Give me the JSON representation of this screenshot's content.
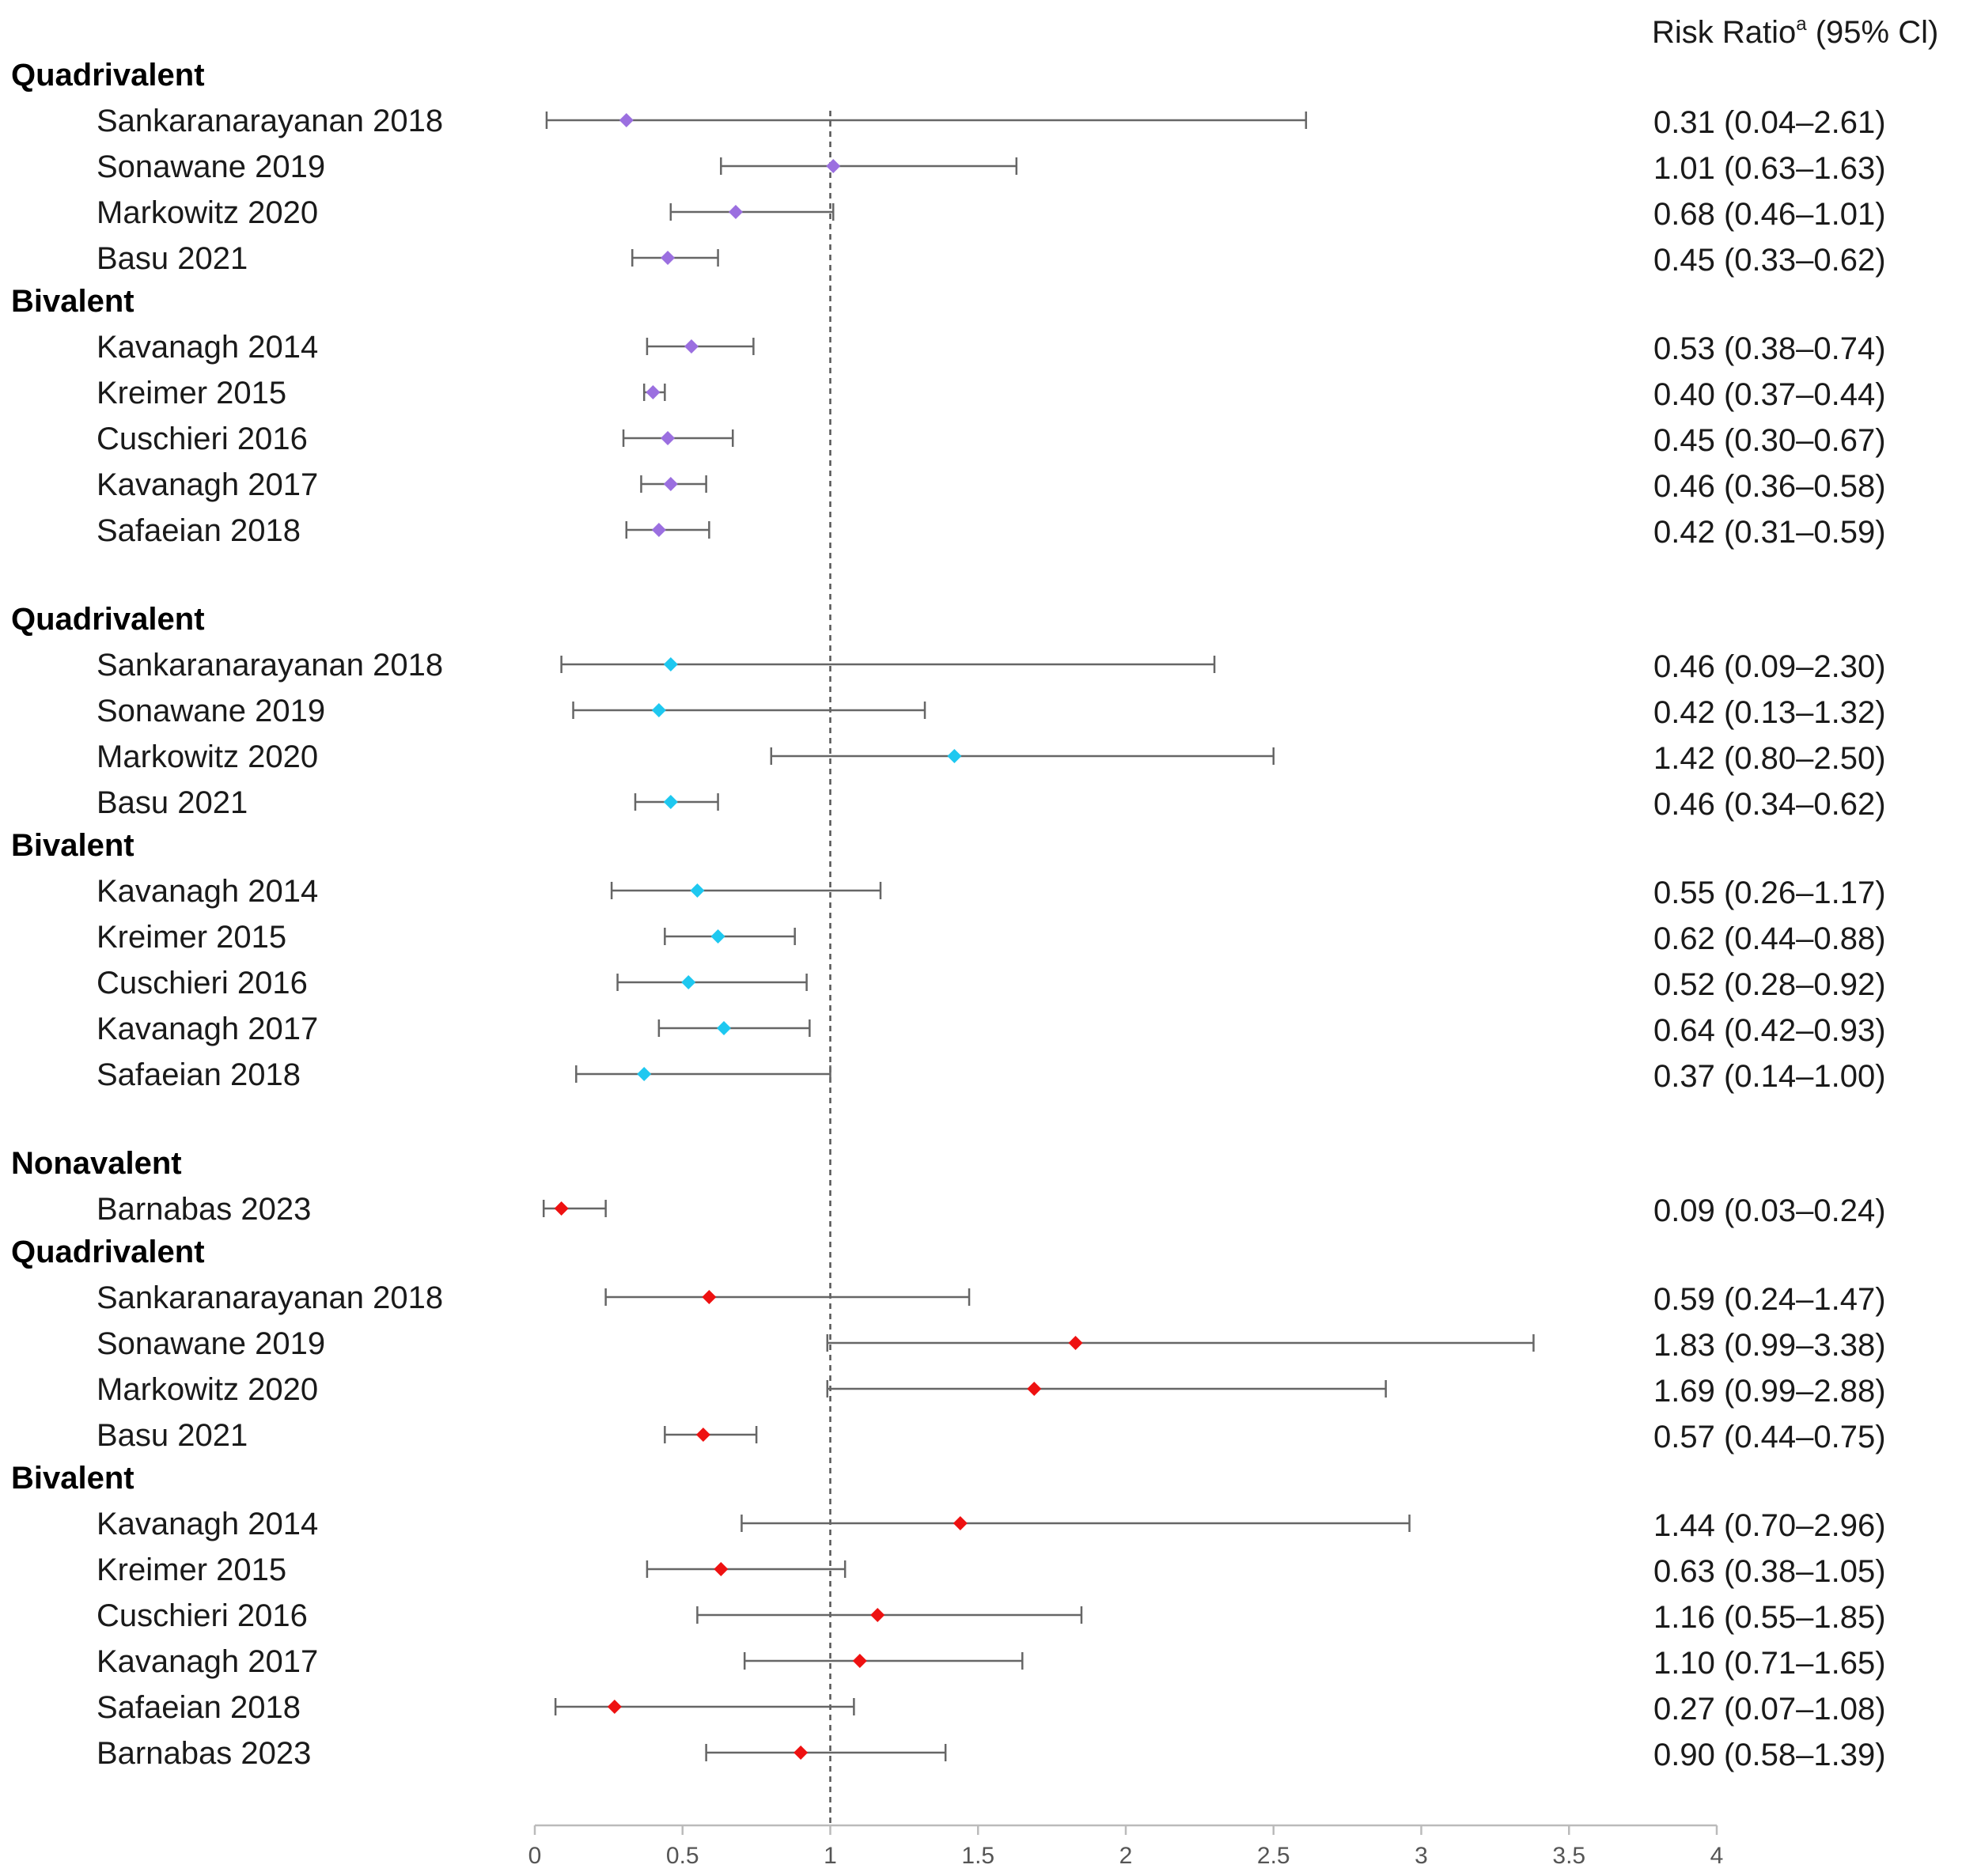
{
  "chart_data": {
    "type": "scatter",
    "subtype": "forest-plot",
    "title": "",
    "header": {
      "text": "Risk Ratio",
      "superscript": "a",
      "suffix": " (95% Cl)"
    },
    "reference_line": 1,
    "xlim": [
      0,
      4
    ],
    "xticks": [
      0,
      0.5,
      1,
      1.5,
      2,
      2.5,
      3,
      3.5,
      4
    ],
    "xtick_labels": [
      "0",
      "0.5",
      "1",
      "1.5",
      "2",
      "2.5",
      "3",
      "3.5",
      "4"
    ],
    "xlabel": "",
    "ylabel": "",
    "panels": [
      {
        "color": "#9b6fe0",
        "groups": [
          {
            "name": "Quadrivalent",
            "studies": [
              {
                "study": "Sankaranarayanan 2018",
                "rr": 0.31,
                "lo": 0.04,
                "hi": 2.61,
                "label": "0.31 (0.04–2.61)"
              },
              {
                "study": "Sonawane 2019",
                "rr": 1.01,
                "lo": 0.63,
                "hi": 1.63,
                "label": "1.01 (0.63–1.63)"
              },
              {
                "study": "Markowitz 2020",
                "rr": 0.68,
                "lo": 0.46,
                "hi": 1.01,
                "label": "0.68 (0.46–1.01)"
              },
              {
                "study": "Basu 2021",
                "rr": 0.45,
                "lo": 0.33,
                "hi": 0.62,
                "label": "0.45 (0.33–0.62)"
              }
            ]
          },
          {
            "name": "Bivalent",
            "studies": [
              {
                "study": "Kavanagh 2014",
                "rr": 0.53,
                "lo": 0.38,
                "hi": 0.74,
                "label": "0.53 (0.38–0.74)"
              },
              {
                "study": "Kreimer 2015",
                "rr": 0.4,
                "lo": 0.37,
                "hi": 0.44,
                "label": "0.40 (0.37–0.44)"
              },
              {
                "study": "Cuschieri 2016",
                "rr": 0.45,
                "lo": 0.3,
                "hi": 0.67,
                "label": "0.45 (0.30–0.67)"
              },
              {
                "study": "Kavanagh 2017",
                "rr": 0.46,
                "lo": 0.36,
                "hi": 0.58,
                "label": "0.46 (0.36–0.58)"
              },
              {
                "study": "Safaeian 2018",
                "rr": 0.42,
                "lo": 0.31,
                "hi": 0.59,
                "label": "0.42 (0.31–0.59)"
              }
            ]
          }
        ]
      },
      {
        "color": "#1ec8f0",
        "groups": [
          {
            "name": "Quadrivalent",
            "studies": [
              {
                "study": "Sankaranarayanan 2018",
                "rr": 0.46,
                "lo": 0.09,
                "hi": 2.3,
                "label": "0.46 (0.09–2.30)"
              },
              {
                "study": "Sonawane 2019",
                "rr": 0.42,
                "lo": 0.13,
                "hi": 1.32,
                "label": "0.42 (0.13–1.32)"
              },
              {
                "study": "Markowitz 2020",
                "rr": 1.42,
                "lo": 0.8,
                "hi": 2.5,
                "label": "1.42 (0.80–2.50)"
              },
              {
                "study": "Basu 2021",
                "rr": 0.46,
                "lo": 0.34,
                "hi": 0.62,
                "label": "0.46 (0.34–0.62)"
              }
            ]
          },
          {
            "name": "Bivalent",
            "studies": [
              {
                "study": "Kavanagh 2014",
                "rr": 0.55,
                "lo": 0.26,
                "hi": 1.17,
                "label": "0.55 (0.26–1.17)"
              },
              {
                "study": "Kreimer 2015",
                "rr": 0.62,
                "lo": 0.44,
                "hi": 0.88,
                "label": "0.62 (0.44–0.88)"
              },
              {
                "study": "Cuschieri 2016",
                "rr": 0.52,
                "lo": 0.28,
                "hi": 0.92,
                "label": "0.52 (0.28–0.92)"
              },
              {
                "study": "Kavanagh 2017",
                "rr": 0.64,
                "lo": 0.42,
                "hi": 0.93,
                "label": "0.64 (0.42–0.93)"
              },
              {
                "study": "Safaeian 2018",
                "rr": 0.37,
                "lo": 0.14,
                "hi": 1.0,
                "label": "0.37 (0.14–1.00)"
              }
            ]
          }
        ]
      },
      {
        "color": "#ee1111",
        "groups": [
          {
            "name": "Nonavalent",
            "studies": [
              {
                "study": "Barnabas 2023",
                "rr": 0.09,
                "lo": 0.03,
                "hi": 0.24,
                "label": "0.09 (0.03–0.24)"
              }
            ]
          },
          {
            "name": "Quadrivalent",
            "studies": [
              {
                "study": "Sankaranarayanan 2018",
                "rr": 0.59,
                "lo": 0.24,
                "hi": 1.47,
                "label": "0.59 (0.24–1.47)"
              },
              {
                "study": "Sonawane 2019",
                "rr": 1.83,
                "lo": 0.99,
                "hi": 3.38,
                "label": "1.83 (0.99–3.38)"
              },
              {
                "study": "Markowitz 2020",
                "rr": 1.69,
                "lo": 0.99,
                "hi": 2.88,
                "label": "1.69 (0.99–2.88)"
              },
              {
                "study": "Basu 2021",
                "rr": 0.57,
                "lo": 0.44,
                "hi": 0.75,
                "label": "0.57 (0.44–0.75)"
              }
            ]
          },
          {
            "name": "Bivalent",
            "studies": [
              {
                "study": "Kavanagh 2014",
                "rr": 1.44,
                "lo": 0.7,
                "hi": 2.96,
                "label": "1.44 (0.70–2.96)"
              },
              {
                "study": "Kreimer 2015",
                "rr": 0.63,
                "lo": 0.38,
                "hi": 1.05,
                "label": "0.63 (0.38–1.05)"
              },
              {
                "study": "Cuschieri 2016",
                "rr": 1.16,
                "lo": 0.55,
                "hi": 1.85,
                "label": "1.16 (0.55–1.85)"
              },
              {
                "study": "Kavanagh 2017",
                "rr": 1.1,
                "lo": 0.71,
                "hi": 1.65,
                "label": "1.10 (0.71–1.65)"
              },
              {
                "study": "Safaeian 2018",
                "rr": 0.27,
                "lo": 0.07,
                "hi": 1.08,
                "label": "0.27 (0.07–1.08)"
              },
              {
                "study": "Barnabas 2023",
                "rr": 0.9,
                "lo": 0.58,
                "hi": 1.39,
                "label": "0.90 (0.58–1.39)"
              }
            ]
          }
        ]
      }
    ]
  }
}
